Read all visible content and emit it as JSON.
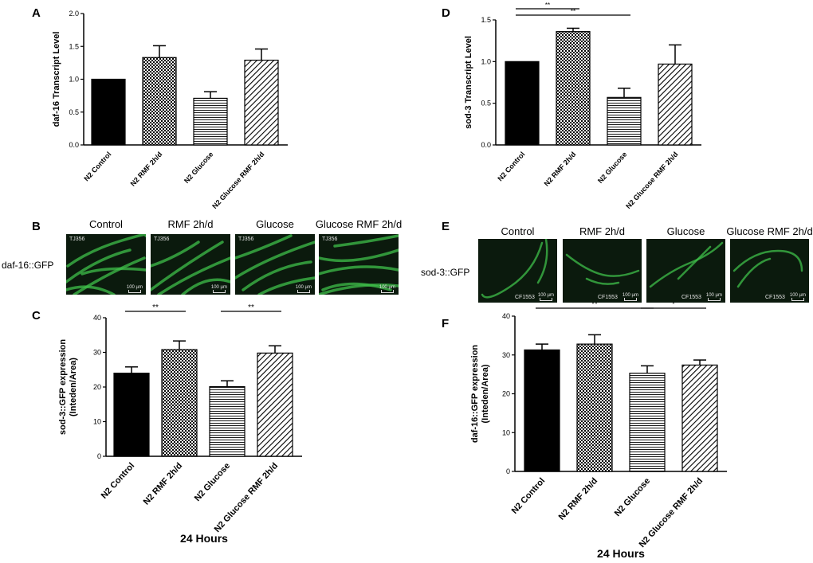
{
  "panels": {
    "A": "A",
    "B": "B",
    "C": "C",
    "D": "D",
    "E": "E",
    "F": "F"
  },
  "micrographs": {
    "B": {
      "row_label": "daf-16::GFP",
      "columns": [
        "Control",
        "RMF 2h/d",
        "Glucose",
        "Glucose RMF 2h/d"
      ],
      "strain": "TJ356",
      "scale_label": "100 µm"
    },
    "E": {
      "row_label": "sod-3::GFP",
      "columns": [
        "Control",
        "RMF 2h/d",
        "Glucose",
        "Glucose RMF 2h/d"
      ],
      "strain": "CF1553",
      "scale_label": "100 µm"
    }
  },
  "colors": {
    "fluorescence": "#3fbf4a",
    "background": "#0b1a0d"
  },
  "chart_data": [
    {
      "panel": "A",
      "type": "bar",
      "categories": [
        "N2 Control",
        "N2 RMF 2h/d",
        "N2 Glucose",
        "N2 Glucose RMF 2h/d"
      ],
      "values": [
        1.0,
        1.33,
        0.71,
        1.29
      ],
      "errors": [
        0,
        0.18,
        0.1,
        0.17
      ],
      "ylabel": "daf-16 Transcript Level",
      "xlabel": "",
      "ylim": [
        0,
        2.0
      ],
      "yticks": [
        "0.0",
        "0.5",
        "1.0",
        "1.5",
        "2.0"
      ],
      "significance": [
        {
          "from": 0,
          "to": 1,
          "label": "*"
        },
        {
          "from": 0,
          "to": 2,
          "label": "**"
        },
        {
          "from": 2,
          "to": 3,
          "label": "**"
        }
      ],
      "fills": [
        "solid",
        "checker",
        "horizontal",
        "diagonal"
      ]
    },
    {
      "panel": "D",
      "type": "bar",
      "categories": [
        "N2 Control",
        "N2 RMF 2h/d",
        "N2 Glucose",
        "N2 Glucose RMF 2h/d"
      ],
      "values": [
        1.0,
        1.36,
        0.57,
        0.97
      ],
      "errors": [
        0,
        0.04,
        0.11,
        0.23
      ],
      "ylabel": "sod-3 Transcript Level",
      "xlabel": "",
      "ylim": [
        0,
        1.5
      ],
      "yticks": [
        "0.0",
        "0.5",
        "1.0",
        "1.5"
      ],
      "significance": [
        {
          "from": 0,
          "to": 1,
          "label": "**"
        },
        {
          "from": 0,
          "to": 2,
          "label": "**"
        }
      ],
      "fills": [
        "solid",
        "checker",
        "horizontal",
        "diagonal"
      ]
    },
    {
      "panel": "C",
      "type": "bar",
      "categories": [
        "N2 Control",
        "N2 RMF 2h/d",
        "N2 Glucose",
        "N2 Glucose RMF 2h/d"
      ],
      "values": [
        24.0,
        30.8,
        20.1,
        29.8
      ],
      "errors": [
        1.8,
        2.5,
        1.7,
        2.1
      ],
      "ylabel": "sod-3::GFP expression (Inteden/Area)",
      "ylabel_lines": [
        "sod-3::GFP expression",
        "(Inteden/Area)"
      ],
      "xlabel": "24 Hours",
      "ylim": [
        0,
        40
      ],
      "yticks": [
        "0",
        "10",
        "20",
        "30",
        "40"
      ],
      "significance": [
        {
          "from": 0,
          "to": 1,
          "label": "**"
        },
        {
          "from": 2,
          "to": 3,
          "label": "**"
        }
      ],
      "fills": [
        "solid",
        "checker",
        "horizontal",
        "diagonal"
      ]
    },
    {
      "panel": "F",
      "type": "bar",
      "categories": [
        "N2 Control",
        "N2 RMF 2h/d",
        "N2 Glucose",
        "N2 Glucose RMF 2h/d"
      ],
      "values": [
        31.3,
        32.8,
        25.3,
        27.4
      ],
      "errors": [
        1.5,
        2.4,
        1.9,
        1.3
      ],
      "ylabel": "daf-16::GFP expression (Inteden/Area)",
      "ylabel_lines": [
        "daf-16::GFP expression",
        "(Inteden/Area)"
      ],
      "xlabel": "24 Hours",
      "ylim": [
        0,
        40
      ],
      "yticks": [
        "0",
        "10",
        "20",
        "30",
        "40"
      ],
      "significance": [
        {
          "from": 0,
          "to": 2,
          "label": "**"
        },
        {
          "from": 2,
          "to": 3,
          "label": "*"
        }
      ],
      "fills": [
        "solid",
        "checker",
        "horizontal",
        "diagonal"
      ]
    }
  ]
}
